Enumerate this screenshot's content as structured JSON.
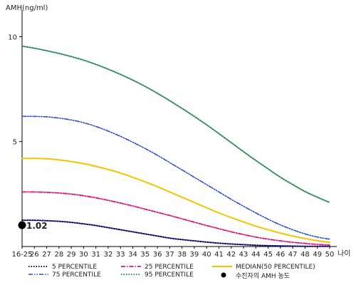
{
  "chart_data": {
    "type": "line",
    "ylabel": "AMH(ng/ml)",
    "xlabel": "나이",
    "ylim": [
      0,
      11
    ],
    "yticks": [
      {
        "value": 5,
        "label": "5"
      },
      {
        "value": 10,
        "label": "10"
      }
    ],
    "categories": [
      "16-25",
      "26",
      "27",
      "28",
      "29",
      "30",
      "31",
      "32",
      "33",
      "34",
      "35",
      "36",
      "37",
      "38",
      "39",
      "40",
      "41",
      "42",
      "43",
      "44",
      "45",
      "46",
      "47",
      "48",
      "49",
      "50"
    ],
    "series": [
      {
        "name": "5 PERCENTILE",
        "color": "#0a0a6e",
        "dash": "dotted",
        "values": [
          1.25,
          1.25,
          1.23,
          1.2,
          1.15,
          1.08,
          1.0,
          0.9,
          0.8,
          0.7,
          0.6,
          0.5,
          0.4,
          0.33,
          0.27,
          0.21,
          0.16,
          0.12,
          0.09,
          0.06,
          0.04,
          0.03,
          0.02,
          0.01,
          0.01,
          0.01
        ]
      },
      {
        "name": "25 PERCENTILE",
        "color": "#e0157a",
        "dash": "dashdot",
        "values": [
          2.6,
          2.6,
          2.58,
          2.55,
          2.5,
          2.42,
          2.32,
          2.2,
          2.07,
          1.93,
          1.78,
          1.63,
          1.48,
          1.32,
          1.16,
          1.0,
          0.85,
          0.7,
          0.57,
          0.45,
          0.35,
          0.27,
          0.2,
          0.15,
          0.1,
          0.07
        ]
      },
      {
        "name": "MEDIAN(50 PERCENTILE)",
        "color": "#f5c400",
        "dash": "solid",
        "values": [
          4.2,
          4.2,
          4.18,
          4.13,
          4.05,
          3.95,
          3.82,
          3.67,
          3.5,
          3.3,
          3.08,
          2.85,
          2.6,
          2.35,
          2.1,
          1.85,
          1.6,
          1.38,
          1.17,
          0.97,
          0.8,
          0.64,
          0.5,
          0.38,
          0.28,
          0.2
        ]
      },
      {
        "name": "75 PERCENTILE",
        "color": "#2a4fd0",
        "dash": "dashdotdot",
        "values": [
          6.2,
          6.2,
          6.18,
          6.12,
          6.03,
          5.9,
          5.72,
          5.5,
          5.25,
          4.97,
          4.67,
          4.35,
          4.0,
          3.65,
          3.3,
          2.95,
          2.6,
          2.25,
          1.92,
          1.6,
          1.3,
          1.03,
          0.8,
          0.6,
          0.45,
          0.35
        ]
      },
      {
        "name": "95 PERCENTILE",
        "color": "#2e8b57",
        "dash": "dotted",
        "values": [
          9.55,
          9.45,
          9.33,
          9.2,
          9.05,
          8.88,
          8.68,
          8.45,
          8.2,
          7.93,
          7.63,
          7.3,
          6.95,
          6.58,
          6.2,
          5.8,
          5.38,
          4.95,
          4.52,
          4.1,
          3.7,
          3.3,
          2.95,
          2.62,
          2.35,
          2.1
        ]
      }
    ],
    "marker": {
      "name": "수진자의 AMH 농도",
      "x": "16-25",
      "value": 1.02,
      "label": "1.02",
      "color": "#000000"
    }
  }
}
